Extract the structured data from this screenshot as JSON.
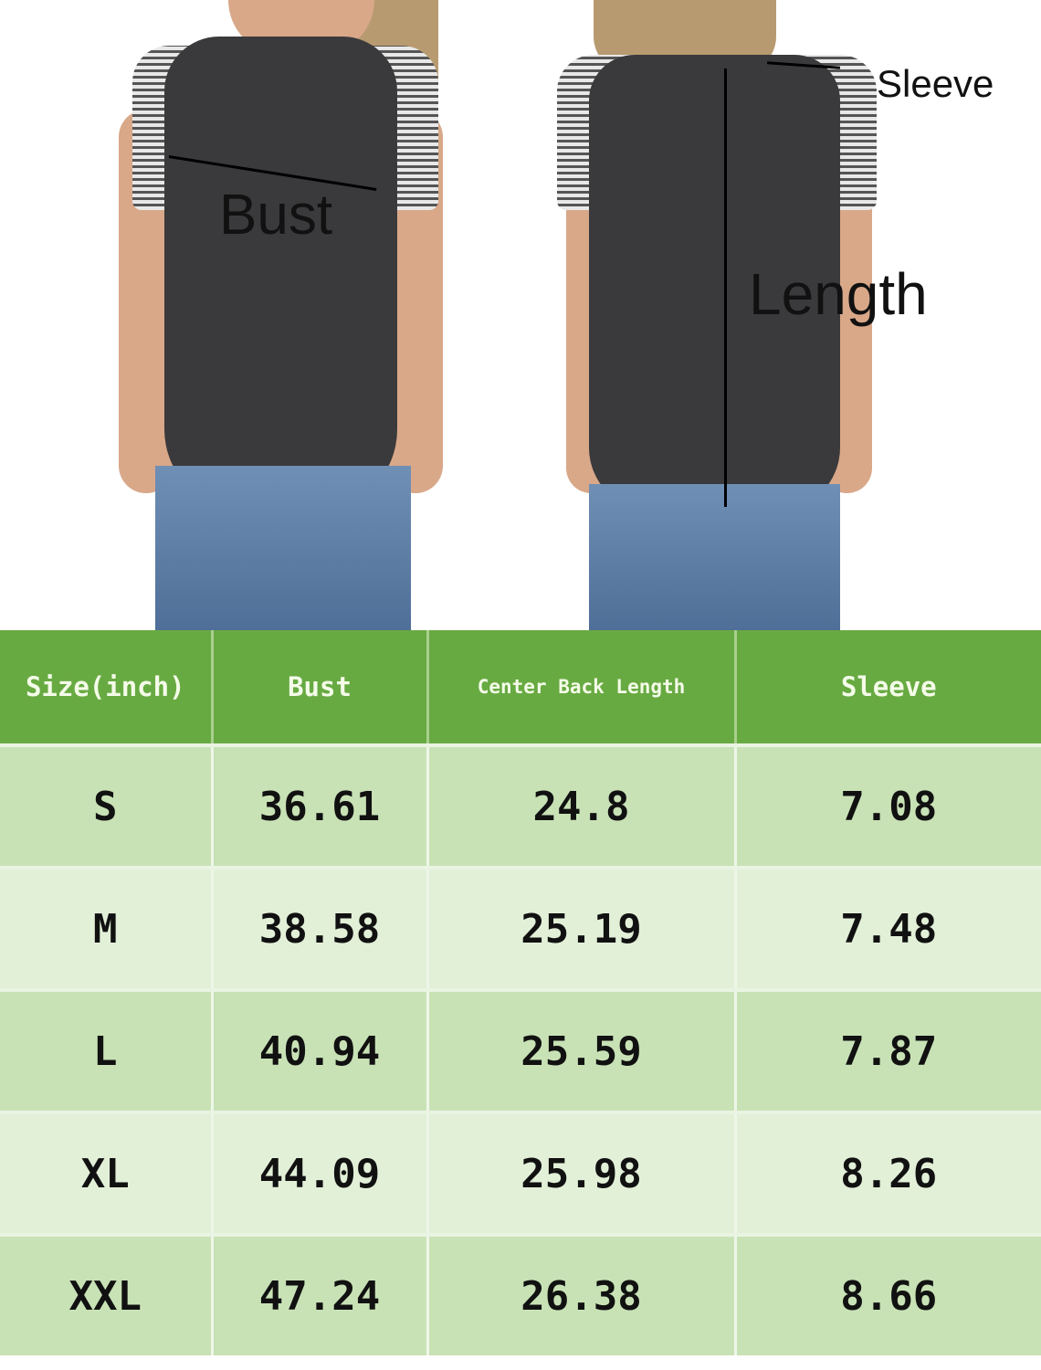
{
  "annotations": {
    "bust": "Bust",
    "length": "Length",
    "sleeve": "Sleeve"
  },
  "table": {
    "headers": [
      "Size(inch)",
      "Bust",
      "Center Back Length",
      "Sleeve"
    ],
    "rows": [
      [
        "S",
        "36.61",
        "24.8",
        "7.08"
      ],
      [
        "M",
        "38.58",
        "25.19",
        "7.48"
      ],
      [
        "L",
        "40.94",
        "25.59",
        "7.87"
      ],
      [
        "XL",
        "44.09",
        "25.98",
        "8.26"
      ],
      [
        "XXL",
        "47.24",
        "26.38",
        "8.66"
      ]
    ]
  },
  "colors": {
    "header": "#68aa42",
    "row_dark": "#c8e2b6",
    "row_light": "#e2f0d8"
  }
}
